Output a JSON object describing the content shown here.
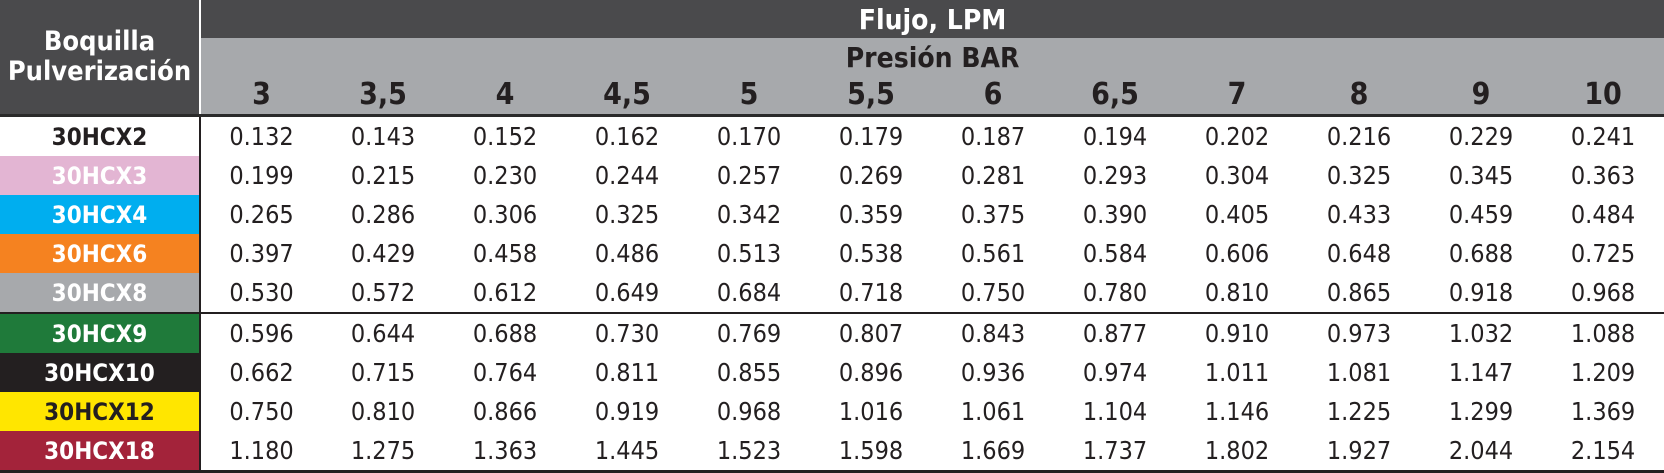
{
  "header": {
    "nozzle_label_line1": "Boquilla",
    "nozzle_label_line2": "Pulverización",
    "flow_label": "Flujo, LPM",
    "pressure_label": "Presión BAR"
  },
  "pressures": [
    "3",
    "3,5",
    "4",
    "4,5",
    "5",
    "5,5",
    "6",
    "6,5",
    "7",
    "8",
    "9",
    "10"
  ],
  "rows": [
    {
      "name": "30HCX2",
      "bg": "#ffffff",
      "fg": "#231f20",
      "values": [
        "0.132",
        "0.143",
        "0.152",
        "0.162",
        "0.170",
        "0.179",
        "0.187",
        "0.194",
        "0.202",
        "0.216",
        "0.229",
        "0.241"
      ]
    },
    {
      "name": "30HCX3",
      "bg": "#e3b5d3",
      "fg": "#ffffff",
      "values": [
        "0.199",
        "0.215",
        "0.230",
        "0.244",
        "0.257",
        "0.269",
        "0.281",
        "0.293",
        "0.304",
        "0.325",
        "0.345",
        "0.363"
      ]
    },
    {
      "name": "30HCX4",
      "bg": "#00aeef",
      "fg": "#ffffff",
      "values": [
        "0.265",
        "0.286",
        "0.306",
        "0.325",
        "0.342",
        "0.359",
        "0.375",
        "0.390",
        "0.405",
        "0.433",
        "0.459",
        "0.484"
      ]
    },
    {
      "name": "30HCX6",
      "bg": "#f58220",
      "fg": "#ffffff",
      "values": [
        "0.397",
        "0.429",
        "0.458",
        "0.486",
        "0.513",
        "0.538",
        "0.561",
        "0.584",
        "0.606",
        "0.648",
        "0.688",
        "0.725"
      ]
    },
    {
      "name": "30HCX8",
      "bg": "#a7a9ac",
      "fg": "#ffffff",
      "values": [
        "0.530",
        "0.572",
        "0.612",
        "0.649",
        "0.684",
        "0.718",
        "0.750",
        "0.780",
        "0.810",
        "0.865",
        "0.918",
        "0.968"
      ]
    },
    {
      "name": "30HCX9",
      "bg": "#1f7a3a",
      "fg": "#ffffff",
      "values": [
        "0.596",
        "0.644",
        "0.688",
        "0.730",
        "0.769",
        "0.807",
        "0.843",
        "0.877",
        "0.910",
        "0.973",
        "1.032",
        "1.088"
      ]
    },
    {
      "name": "30HCX10",
      "bg": "#231f20",
      "fg": "#ffffff",
      "values": [
        "0.662",
        "0.715",
        "0.764",
        "0.811",
        "0.855",
        "0.896",
        "0.936",
        "0.974",
        "1.011",
        "1.081",
        "1.147",
        "1.209"
      ]
    },
    {
      "name": "30HCX12",
      "bg": "#ffe600",
      "fg": "#231f20",
      "values": [
        "0.750",
        "0.810",
        "0.866",
        "0.919",
        "0.968",
        "1.016",
        "1.061",
        "1.104",
        "1.146",
        "1.225",
        "1.299",
        "1.369"
      ]
    },
    {
      "name": "30HCX18",
      "bg": "#a3233a",
      "fg": "#ffffff",
      "values": [
        "1.180",
        "1.275",
        "1.363",
        "1.445",
        "1.523",
        "1.598",
        "1.669",
        "1.737",
        "1.802",
        "1.927",
        "2.044",
        "2.154"
      ]
    }
  ]
}
